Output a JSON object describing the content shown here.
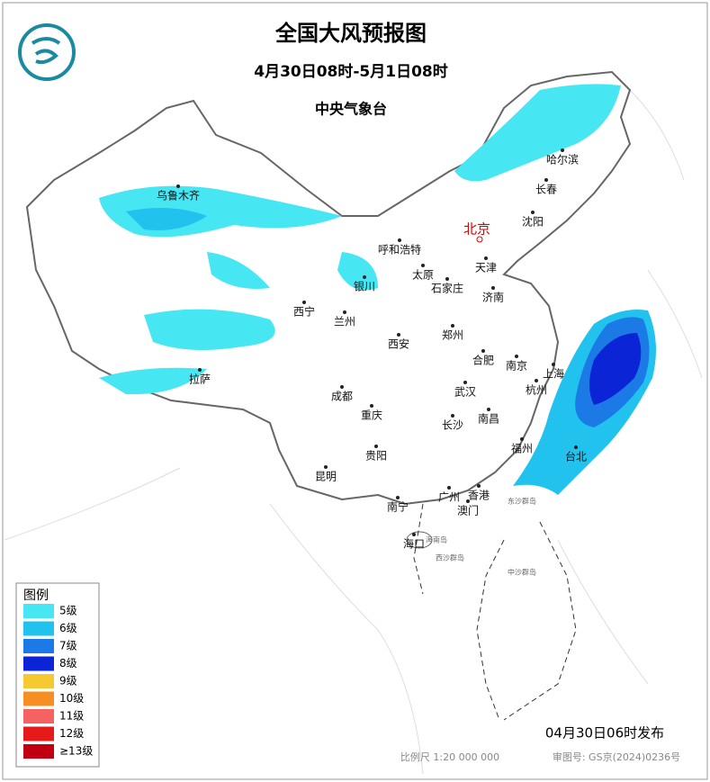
{
  "header": {
    "title": "全国大风预报图",
    "period": "4月30日08时-5月1日08时",
    "issuer": "中央气象台"
  },
  "cities": [
    "乌鲁木齐",
    "呼和浩特",
    "天津",
    "沈阳",
    "长春",
    "哈尔滨",
    "太原",
    "石家庄",
    "济南",
    "银川",
    "西宁",
    "兰州",
    "西安",
    "郑州",
    "合肥",
    "南京",
    "上海",
    "杭州",
    "拉萨",
    "成都",
    "重庆",
    "武汉",
    "南昌",
    "长沙",
    "福州",
    "台北",
    "贵阳",
    "昆明",
    "南宁",
    "广州",
    "香港",
    "澳门",
    "海口"
  ],
  "capital": "北京",
  "places": [
    "东沙群岛",
    "西沙群岛",
    "中沙群岛",
    "海南岛"
  ],
  "legend": {
    "title": "图例",
    "items": [
      {
        "label": "5级",
        "color": "#46e6f2"
      },
      {
        "label": "6级",
        "color": "#22c2ee"
      },
      {
        "label": "7级",
        "color": "#1b7ae6"
      },
      {
        "label": "8级",
        "color": "#0b24d6"
      },
      {
        "label": "9级",
        "color": "#f6c832"
      },
      {
        "label": "10级",
        "color": "#f68e22"
      },
      {
        "label": "11级",
        "color": "#f66262"
      },
      {
        "label": "12级",
        "color": "#e61a1a"
      },
      {
        "label": "≥13级",
        "color": "#c00012"
      }
    ]
  },
  "footer": {
    "issued": "04月30日06时发布",
    "scale": "比例尺 1:20 000 000",
    "review": "审图号: GS京(2024)0236号"
  }
}
